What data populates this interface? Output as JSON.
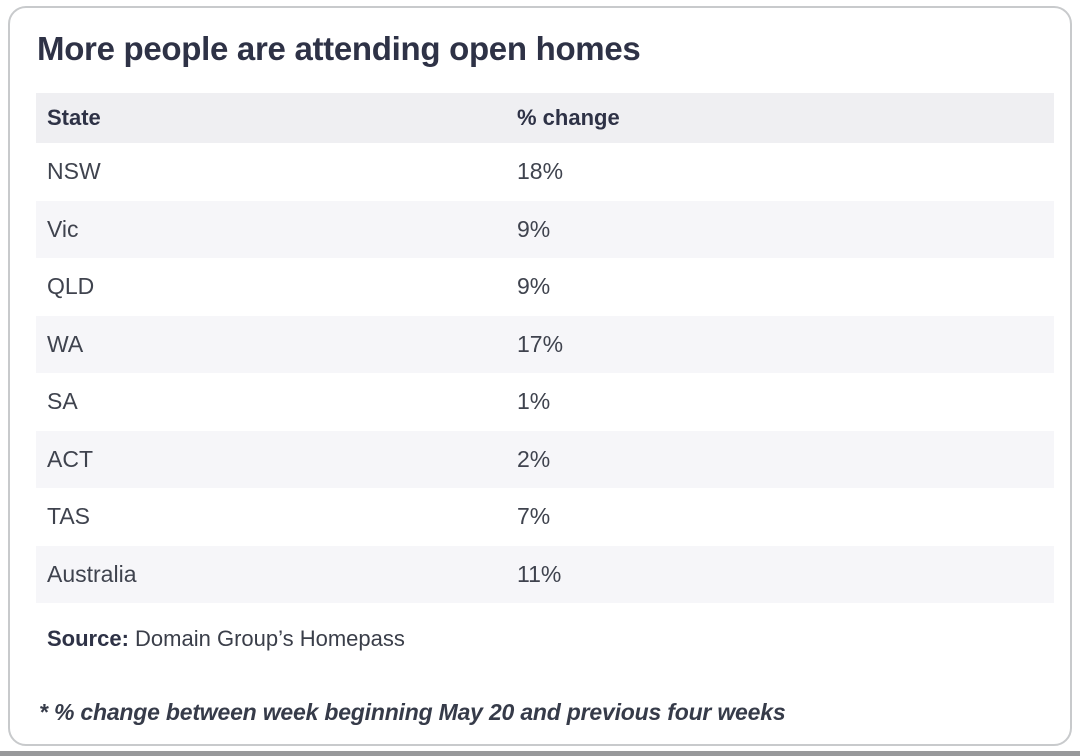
{
  "title": "More people are attending open homes",
  "table": {
    "header": {
      "state": "State",
      "change": "% change"
    },
    "rows": [
      {
        "state": "NSW",
        "change": "18%"
      },
      {
        "state": "Vic",
        "change": "9%"
      },
      {
        "state": "QLD",
        "change": "9%"
      },
      {
        "state": "WA",
        "change": "17%"
      },
      {
        "state": "SA",
        "change": "1%"
      },
      {
        "state": "ACT",
        "change": "2%"
      },
      {
        "state": "TAS",
        "change": "7%"
      },
      {
        "state": "Australia",
        "change": "11%"
      }
    ]
  },
  "source": {
    "label": "Source:",
    "text": " Domain Group’s Homepass"
  },
  "footnote": "* % change between week beginning May 20 and previous four weeks",
  "colors": {
    "heading_text": "#2e3246",
    "body_text": "#3f434e",
    "header_row_bg": "#efeff2",
    "stripe_row_bg": "#f6f6f9",
    "card_border": "#c8cacc",
    "bottom_bar": "#98999b"
  },
  "chart_data": {
    "type": "table",
    "title": "More people are attending open homes",
    "columns": [
      "State",
      "% change"
    ],
    "categories": [
      "NSW",
      "Vic",
      "QLD",
      "WA",
      "SA",
      "ACT",
      "TAS",
      "Australia"
    ],
    "values": [
      18,
      9,
      9,
      17,
      1,
      2,
      7,
      11
    ],
    "unit": "%",
    "source": "Domain Group’s Homepass",
    "footnote": "* % change between week beginning May 20 and previous four weeks"
  }
}
